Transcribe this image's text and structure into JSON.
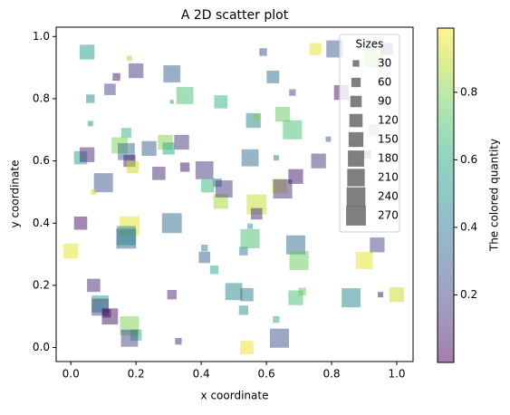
{
  "chart_data": {
    "type": "scatter",
    "title": "A 2D scatter plot",
    "x_label": "x coordinate",
    "y_label": "y coordinate",
    "marker": "square",
    "alpha": 0.5,
    "colormap": "viridis",
    "x": [
      0.05,
      0.2,
      0.31,
      0.35,
      0.12,
      0.14,
      0.18,
      0.06,
      0.06,
      0.31,
      0.46,
      0.59,
      0.62,
      0.68,
      0.75,
      0.81,
      0.83,
      0.93,
      0.97,
      0.56,
      0.65,
      0.68,
      0.57,
      0.87,
      0.91,
      0.93,
      0.79,
      0.76,
      0.03,
      0.05,
      0.17,
      0.15,
      0.17,
      0.18,
      0.19,
      0.24,
      0.29,
      0.3,
      0.34,
      0.27,
      0.35,
      0.41,
      0.42,
      0.46,
      0.45,
      0.47,
      0.55,
      0.63,
      0.64,
      0.65,
      0.69,
      0.1,
      0.07,
      0.03,
      0.18,
      0.17,
      0.17,
      0.31,
      0.57,
      0.57,
      0.55,
      0.53,
      0.55,
      0.41,
      0.41,
      0.44,
      0.69,
      0.7,
      0.9,
      0.94,
      0.0,
      0.07,
      0.09,
      0.09,
      0.12,
      0.11,
      0.31,
      0.5,
      0.54,
      0.53,
      0.69,
      0.71,
      0.86,
      0.95,
      1.0,
      0.63,
      0.18,
      0.2,
      0.18,
      0.33,
      0.54,
      0.64
    ],
    "y": [
      0.95,
      0.89,
      0.88,
      0.81,
      0.83,
      0.87,
      0.93,
      0.8,
      0.72,
      0.79,
      0.79,
      0.95,
      0.87,
      0.82,
      0.96,
      0.96,
      0.82,
      0.93,
      0.96,
      0.73,
      0.75,
      0.7,
      0.74,
      0.65,
      0.62,
      0.7,
      0.67,
      0.6,
      0.61,
      0.62,
      0.69,
      0.65,
      0.63,
      0.6,
      0.58,
      0.64,
      0.66,
      0.64,
      0.66,
      0.56,
      0.58,
      0.57,
      0.52,
      0.47,
      0.53,
      0.51,
      0.61,
      0.61,
      0.52,
      0.51,
      0.55,
      0.53,
      0.5,
      0.4,
      0.39,
      0.35,
      0.36,
      0.4,
      0.46,
      0.43,
      0.39,
      0.31,
      0.35,
      0.32,
      0.29,
      0.25,
      0.33,
      0.28,
      0.28,
      0.33,
      0.31,
      0.2,
      0.14,
      0.13,
      0.1,
      0.11,
      0.17,
      0.18,
      0.17,
      0.12,
      0.16,
      0.18,
      0.16,
      0.17,
      0.17,
      0.09,
      0.07,
      0.04,
      0.03,
      0.02,
      0.0,
      0.03
    ],
    "sizes": [
      150,
      150,
      200,
      200,
      90,
      40,
      20,
      50,
      20,
      10,
      120,
      40,
      110,
      30,
      100,
      200,
      150,
      250,
      100,
      150,
      150,
      250,
      30,
      30,
      40,
      90,
      20,
      150,
      120,
      150,
      70,
      180,
      200,
      100,
      100,
      150,
      150,
      100,
      150,
      120,
      60,
      220,
      120,
      150,
      50,
      200,
      200,
      20,
      150,
      250,
      150,
      250,
      20,
      120,
      270,
      270,
      250,
      270,
      270,
      90,
      20,
      50,
      250,
      30,
      90,
      50,
      250,
      250,
      200,
      150,
      150,
      120,
      200,
      200,
      180,
      50,
      60,
      200,
      120,
      60,
      150,
      40,
      250,
      20,
      150,
      30,
      250,
      90,
      200,
      30,
      120,
      250
    ],
    "color_values": [
      0.55,
      0.15,
      0.3,
      0.7,
      0.2,
      0.05,
      0.85,
      0.45,
      0.5,
      0.5,
      0.65,
      0.25,
      0.35,
      0.2,
      0.95,
      0.3,
      0.05,
      0.8,
      0.25,
      0.45,
      0.75,
      0.7,
      0.8,
      0.85,
      0.1,
      0.7,
      0.3,
      0.15,
      0.55,
      0.1,
      0.65,
      0.8,
      0.35,
      0.05,
      0.9,
      0.3,
      0.8,
      0.6,
      0.15,
      0.1,
      0.05,
      0.15,
      0.65,
      0.85,
      0.4,
      0.15,
      0.35,
      0.4,
      0.95,
      0.15,
      0.05,
      0.25,
      0.9,
      0.05,
      0.95,
      0.3,
      0.45,
      0.35,
      0.9,
      0.1,
      0.5,
      0.4,
      0.7,
      0.45,
      0.3,
      0.6,
      0.35,
      0.75,
      0.95,
      0.2,
      0.95,
      0.1,
      0.55,
      0.2,
      0.05,
      0.05,
      0.1,
      0.45,
      0.4,
      0.5,
      0.7,
      0.75,
      0.45,
      0.05,
      0.9,
      0.6,
      0.8,
      0.65,
      0.2,
      0.1,
      0.95,
      0.25
    ],
    "xlim": [
      -0.045,
      1.05
    ],
    "ylim": [
      -0.045,
      1.03
    ],
    "xticks": [
      {
        "value": 0,
        "label": "0.0"
      },
      0.2,
      0.4,
      0.6,
      0.8,
      {
        "value": 1,
        "label": "1.0"
      }
    ],
    "yticks": [
      {
        "value": 0,
        "label": "0.0"
      },
      0.2,
      0.4,
      0.6,
      0.8,
      {
        "value": 1,
        "label": "1.0"
      }
    ],
    "legend": {
      "title": "Sizes",
      "location": "upper right",
      "sizes": [
        30,
        60,
        90,
        120,
        150,
        180,
        210,
        240,
        270
      ]
    },
    "colorbar": {
      "label": "The colored quantity",
      "lim": [
        0.0,
        0.99
      ],
      "ticks": [
        0.2,
        0.4,
        0.6,
        0.8
      ]
    }
  }
}
